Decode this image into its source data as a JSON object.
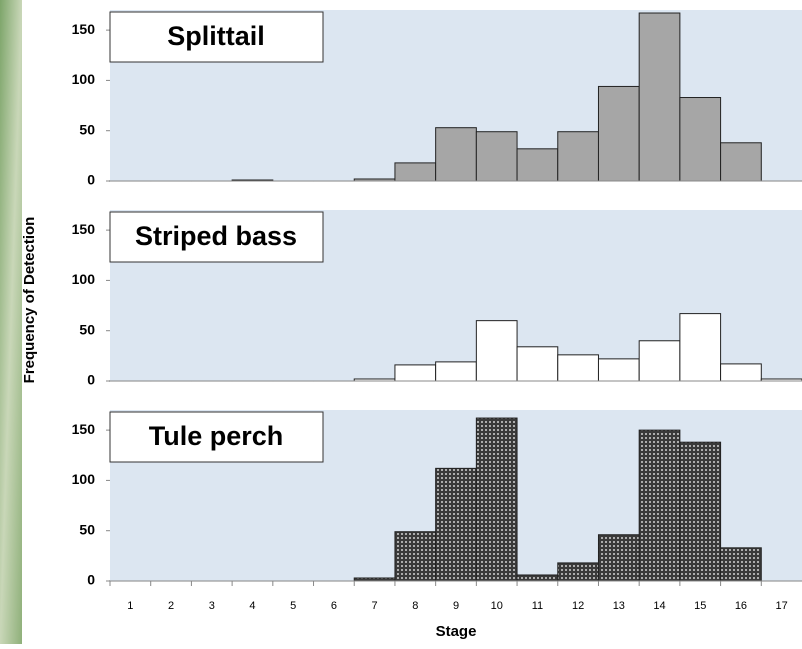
{
  "ylabel": "Frequency of Detection",
  "xlabel": "Stage",
  "chart_data": [
    {
      "type": "bar",
      "title": "Splittail",
      "color": "#a6a6a6",
      "categories": [
        "1",
        "2",
        "3",
        "4",
        "5",
        "6",
        "7",
        "8",
        "9",
        "10",
        "11",
        "12",
        "13",
        "14",
        "15",
        "16",
        "17"
      ],
      "values": [
        0,
        0,
        0,
        1,
        0,
        0,
        2,
        18,
        53,
        49,
        32,
        49,
        94,
        167,
        83,
        38,
        0
      ],
      "ylim": [
        0,
        170
      ],
      "yticks": [
        0,
        50,
        100,
        150
      ]
    },
    {
      "type": "bar",
      "title": "Striped bass",
      "color": "#ffffff",
      "categories": [
        "1",
        "2",
        "3",
        "4",
        "5",
        "6",
        "7",
        "8",
        "9",
        "10",
        "11",
        "12",
        "13",
        "14",
        "15",
        "16",
        "17"
      ],
      "values": [
        0,
        0,
        0,
        0,
        0,
        0,
        2,
        16,
        19,
        60,
        34,
        26,
        22,
        40,
        67,
        17,
        2
      ],
      "ylim": [
        0,
        170
      ],
      "yticks": [
        0,
        50,
        100,
        150
      ]
    },
    {
      "type": "bar",
      "title": "Tule perch",
      "color": "#3a3a3a",
      "hatch": "dots",
      "categories": [
        "1",
        "2",
        "3",
        "4",
        "5",
        "6",
        "7",
        "8",
        "9",
        "10",
        "11",
        "12",
        "13",
        "14",
        "15",
        "16",
        "17"
      ],
      "values": [
        0,
        0,
        0,
        0,
        0,
        0,
        3,
        49,
        112,
        162,
        6,
        18,
        46,
        150,
        138,
        33,
        0
      ],
      "ylim": [
        0,
        170
      ],
      "yticks": [
        0,
        50,
        100,
        150
      ]
    }
  ]
}
